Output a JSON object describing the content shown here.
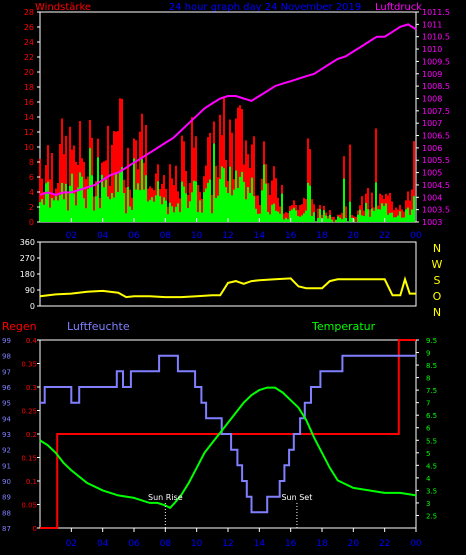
{
  "header": {
    "left_title": "Windstärke",
    "center_title": "24 hour graph day  24 November 2019",
    "right_title": "Luftdruck"
  },
  "colors": {
    "wind_gust": "#ff0000",
    "wind_avg": "#00ff00",
    "pressure": "#ff00ff",
    "direction": "#ffff00",
    "rain": "#ff0000",
    "humidity": "#8080ff",
    "temperature": "#00ff00",
    "axis": "#ffffff",
    "hour_tick": "#0000ff"
  },
  "compass_labels": [
    "N",
    "W",
    "S",
    "O",
    "N"
  ],
  "chart_data": [
    {
      "type": "bar",
      "name": "wind-pressure",
      "x_ticks": [
        "02",
        "04",
        "06",
        "08",
        "10",
        "12",
        "14",
        "16",
        "18",
        "20",
        "22",
        "00"
      ],
      "x_range": [
        0,
        24
      ],
      "y_left": {
        "label": "Windstärke",
        "range": [
          0,
          28
        ],
        "ticks": [
          "0",
          "2",
          "4",
          "6",
          "8",
          "10",
          "12",
          "14",
          "16",
          "18",
          "20",
          "22",
          "24",
          "26",
          "28"
        ]
      },
      "y_right": {
        "label": "Luftdruck",
        "range": [
          1003,
          1011.5
        ],
        "ticks": [
          "1003",
          "1003.5",
          "1004",
          "1004.5",
          "1005",
          "1005.5",
          "1006",
          "1006.5",
          "1007",
          "1007.5",
          "1008",
          "1008.5",
          "1009",
          "1009.5",
          "1010",
          "1010.5",
          "1011",
          "1011.5"
        ]
      },
      "pressure": {
        "x": [
          0,
          0.5,
          1,
          1.5,
          2,
          2.5,
          3,
          3.5,
          4,
          4.5,
          5,
          5.5,
          6,
          6.5,
          7,
          7.5,
          8,
          8.5,
          9,
          9.5,
          10,
          10.5,
          11,
          11.5,
          12,
          12.5,
          13,
          13.5,
          14,
          14.5,
          15,
          15.5,
          16,
          16.5,
          17,
          17.5,
          18,
          18.5,
          19,
          19.5,
          20,
          20.5,
          21,
          21.5,
          22,
          22.5,
          23,
          23.5,
          24
        ],
        "y": [
          1004.1,
          1004.2,
          1004.1,
          1004.2,
          1004.2,
          1004.3,
          1004.4,
          1004.5,
          1004.7,
          1004.9,
          1005.0,
          1005.2,
          1005.4,
          1005.6,
          1005.8,
          1006.0,
          1006.2,
          1006.4,
          1006.7,
          1007.0,
          1007.3,
          1007.6,
          1007.8,
          1008.0,
          1008.1,
          1008.1,
          1008.0,
          1007.9,
          1008.1,
          1008.3,
          1008.5,
          1008.6,
          1008.7,
          1008.8,
          1008.9,
          1009.0,
          1009.2,
          1009.4,
          1009.6,
          1009.7,
          1009.9,
          1010.1,
          1010.3,
          1010.5,
          1010.5,
          1010.7,
          1010.9,
          1011.0,
          1010.8
        ]
      }
    },
    {
      "type": "line",
      "name": "wind-direction",
      "x_range": [
        0,
        24
      ],
      "y_range": [
        0,
        360
      ],
      "y_ticks": [
        "0",
        "90",
        "180",
        "270",
        "360"
      ],
      "x": [
        0,
        1,
        2,
        3,
        4,
        5,
        5.5,
        6,
        7,
        8,
        9,
        10,
        11,
        11.5,
        12,
        12.5,
        13,
        13.5,
        14,
        15,
        16,
        16.5,
        17,
        18,
        18.5,
        19,
        20,
        21,
        22,
        22.5,
        23,
        23.3,
        23.6,
        24
      ],
      "y": [
        55,
        65,
        70,
        80,
        85,
        75,
        50,
        55,
        55,
        50,
        50,
        55,
        60,
        60,
        130,
        140,
        125,
        140,
        145,
        150,
        155,
        110,
        100,
        100,
        140,
        150,
        150,
        150,
        150,
        60,
        60,
        150,
        70,
        70
      ]
    },
    {
      "type": "line",
      "name": "rain-humidity-temperature",
      "x_range": [
        0,
        24
      ],
      "left_label": "Regen",
      "middle_label": "Luftfeuchte",
      "right_label": "Temperatur",
      "rain_axis": {
        "range": [
          0,
          0.4
        ],
        "ticks": [
          "0",
          "0.05",
          "0.1",
          "0.15",
          "0.2",
          "0.25",
          "0.3",
          "0.35",
          "0.4"
        ]
      },
      "humidity_axis": {
        "range": [
          87,
          99
        ],
        "ticks": [
          "87",
          "88",
          "89",
          "90",
          "91",
          "92",
          "93",
          "94",
          "95",
          "96",
          "97",
          "98",
          "99"
        ]
      },
      "temperature_axis": {
        "range": [
          2,
          9.5
        ],
        "ticks": [
          "2.5",
          "3",
          "3.5",
          "4",
          "4.5",
          "5",
          "5.5",
          "6",
          "6.5",
          "7",
          "7.5",
          "8",
          "8.5",
          "9",
          "9.5"
        ]
      },
      "annotations": [
        {
          "text": "Sun Rise",
          "x": 8.0
        },
        {
          "text": "Sun Set",
          "x": 16.4
        }
      ],
      "rain": {
        "x": [
          0,
          1.1,
          1.1,
          22.9,
          22.9,
          24
        ],
        "y": [
          0,
          0,
          0.2,
          0.2,
          0.4,
          0.4
        ]
      },
      "humidity": {
        "x": [
          0,
          0.3,
          0.3,
          2.0,
          2.0,
          2.5,
          2.5,
          3.0,
          3.0,
          3.8,
          3.8,
          4.6,
          4.6,
          4.9,
          4.9,
          5.3,
          5.3,
          5.8,
          5.8,
          7.6,
          7.6,
          8.8,
          8.8,
          9.9,
          9.9,
          10.3,
          10.3,
          10.6,
          10.6,
          11.6,
          11.6,
          12.2,
          12.2,
          12.6,
          12.6,
          12.9,
          12.9,
          13.2,
          13.2,
          13.5,
          13.5,
          14.5,
          14.5,
          15.3,
          15.3,
          15.6,
          15.6,
          15.9,
          15.9,
          16.2,
          16.2,
          16.6,
          16.6,
          16.9,
          16.9,
          17.3,
          17.3,
          17.7,
          17.7,
          17.9,
          17.9,
          18.3,
          18.3,
          18.8,
          18.8,
          19.3,
          19.3,
          19.7,
          19.7,
          21.7,
          21.7,
          24
        ],
        "y": [
          95,
          95,
          96,
          96,
          95,
          95,
          96,
          96,
          96,
          96,
          96,
          96,
          96,
          96,
          97,
          97,
          96,
          96,
          97,
          97,
          98,
          98,
          97,
          97,
          96,
          96,
          95,
          95,
          94,
          94,
          93,
          93,
          92,
          92,
          91,
          91,
          90,
          90,
          89,
          89,
          88,
          88,
          89,
          89,
          90,
          90,
          91,
          91,
          92,
          92,
          93,
          93,
          94,
          94,
          95,
          95,
          96,
          96,
          96,
          96,
          97,
          97,
          97,
          97,
          97,
          97,
          98,
          98,
          98,
          98,
          98,
          98
        ]
      },
      "temperature": {
        "x": [
          0,
          0.5,
          1,
          1.5,
          2,
          3,
          4,
          5,
          6,
          7,
          7.5,
          8,
          8.3,
          8.6,
          9,
          9.5,
          10,
          10.5,
          11,
          11.5,
          12,
          12.5,
          13,
          13.5,
          14,
          14.5,
          15,
          15.5,
          16,
          16.5,
          17,
          17.5,
          18,
          18.5,
          19,
          20,
          21,
          22,
          23,
          24
        ],
        "y": [
          5.5,
          5.3,
          5.0,
          4.6,
          4.3,
          3.8,
          3.5,
          3.3,
          3.2,
          3.0,
          3.0,
          2.9,
          2.8,
          3.0,
          3.3,
          3.8,
          4.4,
          5.0,
          5.4,
          5.8,
          6.2,
          6.6,
          7.0,
          7.3,
          7.5,
          7.6,
          7.6,
          7.4,
          7.1,
          6.8,
          6.3,
          5.6,
          5.0,
          4.4,
          3.9,
          3.6,
          3.5,
          3.4,
          3.4,
          3.3
        ]
      }
    }
  ]
}
